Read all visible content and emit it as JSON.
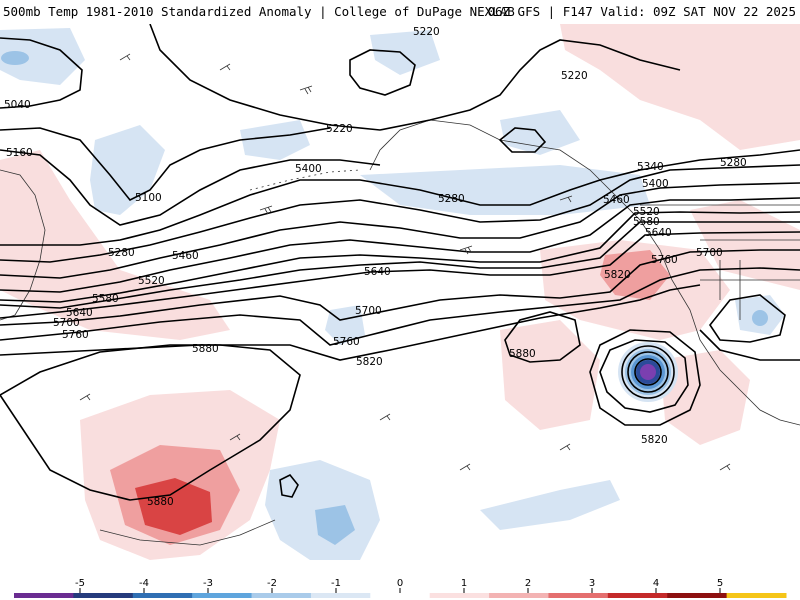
{
  "header": {
    "left_text": "500mb Temp 1981-2010 Standardized Anomaly | College of DuPage NEXLAB",
    "right_text": "06Z GFS | F147 Valid: 09Z SAT NOV 22 2025"
  },
  "contour_labels": [
    "5220",
    "5220",
    "5040",
    "5160",
    "5100",
    "5280",
    "5400",
    "5460",
    "5520",
    "5580",
    "5640",
    "5700",
    "5760",
    "5880",
    "5280",
    "5220",
    "5340",
    "5400",
    "5460",
    "5520",
    "5580",
    "5640",
    "5280",
    "5700",
    "5760",
    "5820",
    "5640",
    "5700",
    "5760",
    "5820",
    "5880",
    "5820",
    "5880"
  ],
  "colorbar": {
    "ticks": [
      "-5",
      "-4",
      "-3",
      "-2",
      "-1",
      "0",
      "1",
      "2",
      "3",
      "4",
      "5"
    ],
    "colors": [
      "#6a2c91",
      "#253b7c",
      "#2f6fb3",
      "#5fa5dd",
      "#a9cbea",
      "#dbe7f4",
      "#ffffff",
      "#fbe0e0",
      "#f3b3b3",
      "#e46f6f",
      "#c42a2a",
      "#8d1010",
      "#f5c518"
    ]
  },
  "anomaly_colors": {
    "warm_light": "#f9dede",
    "warm_mid": "#ef9f9f",
    "warm_strong": "#d94444",
    "warm_deep": "#b81f1f",
    "cold_light": "#d6e4f3",
    "cold_mid": "#9cc3e6",
    "cold_strong": "#5b97d3",
    "cold_deep": "#2c4b9a",
    "purple": "#7b3fb0"
  }
}
